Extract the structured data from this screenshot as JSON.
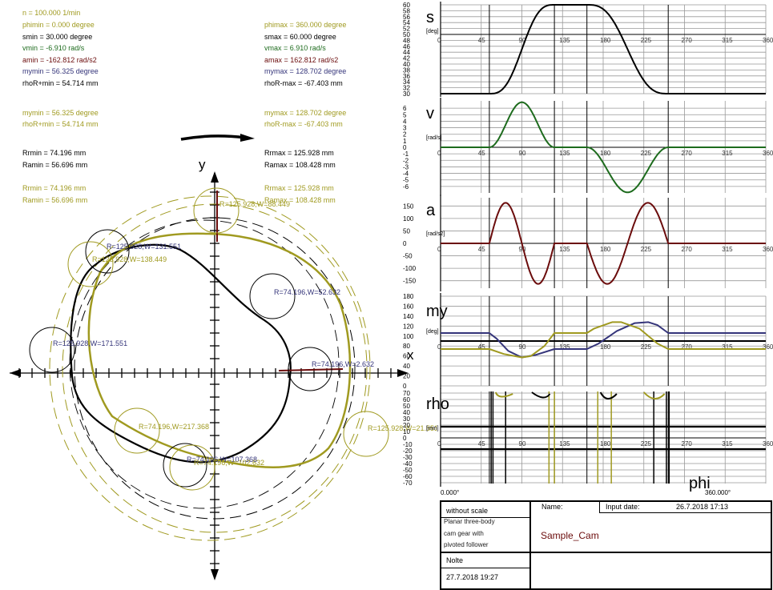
{
  "params_left": [
    {
      "text": "n = 100.000 1/min",
      "color": "olive"
    },
    {
      "text": "phimin = 0.000 degree",
      "color": "olive"
    },
    {
      "text": "smin = 30.000 degree",
      "color": "black"
    },
    {
      "text": "vmin = -6.910 rad/s",
      "color": "green"
    },
    {
      "text": "amin = -162.812 rad/s2",
      "color": "maroon"
    },
    {
      "text": "mymin = 56.325 degree",
      "color": "navy"
    },
    {
      "text": "rhoR+min = 54.714 mm",
      "color": "black"
    }
  ],
  "params_right": [
    {
      "text": "phimax = 360.000 degree",
      "color": "olive"
    },
    {
      "text": "smax = 60.000 degree",
      "color": "black"
    },
    {
      "text": "vmax = 6.910 rad/s",
      "color": "green"
    },
    {
      "text": "amax = 162.812 rad/s2",
      "color": "maroon"
    },
    {
      "text": "mymax = 128.702 degree",
      "color": "navy"
    },
    {
      "text": "rhoR-max = -67.403 mm",
      "color": "black"
    }
  ],
  "params_left2": [
    {
      "text": "mymin = 56.325 degree",
      "color": "olive"
    },
    {
      "text": "rhoR+min = 54.714 mm",
      "color": "olive"
    }
  ],
  "params_right2": [
    {
      "text": "mymax = 128.702 degree",
      "color": "olive"
    },
    {
      "text": "rhoR-max = -67.403 mm",
      "color": "olive"
    }
  ],
  "radii_left_black": [
    "Rrmin = 74.196 mm",
    "Ramin = 56.696 mm"
  ],
  "radii_right_black": [
    "Rrmax = 125.928 mm",
    "Ramax = 108.428 mm"
  ],
  "radii_left_olive": [
    "Rrmin = 74.196 mm",
    "Ramin = 56.696 mm"
  ],
  "radii_right_olive": [
    "Rrmax = 125.928 mm",
    "Ramax = 108.428 mm"
  ],
  "cam_drawing": {
    "axis_x_label": "x",
    "axis_y_label": "y",
    "rotation_arrow": "clockwise",
    "annotations": [
      {
        "text": "R=125.928,W=88.449",
        "color": "olive"
      },
      {
        "text": "R=125.928,W=131.551",
        "color": "navy"
      },
      {
        "text": "R=125.928,W=138.449",
        "color": "olive"
      },
      {
        "text": "R=74.196,W=52.632",
        "color": "navy"
      },
      {
        "text": "R=125.928,W=171.551",
        "color": "navy"
      },
      {
        "text": "R=74.196,W=2.632",
        "color": "navy"
      },
      {
        "text": "R=74.196,W=217.368",
        "color": "olive"
      },
      {
        "text": "R=74.196,W=107.368",
        "color": "navy"
      },
      {
        "text": "R=74.196,W=102.632",
        "color": "olive"
      },
      {
        "text": "R=125.928,W=21.551",
        "color": "olive"
      }
    ]
  },
  "chart_data": [
    {
      "type": "line",
      "title": "s",
      "ylabel": "[deg]",
      "x": [
        0,
        45,
        54,
        90,
        126,
        144,
        180,
        198,
        234,
        252,
        270,
        315,
        360
      ],
      "series": [
        {
          "name": "s",
          "color": "#000000",
          "values": [
            30,
            30,
            30,
            45,
            60,
            60,
            60,
            60,
            45,
            30,
            30,
            30,
            30
          ]
        }
      ],
      "xticks": [
        0,
        45,
        90,
        135,
        180,
        225,
        270,
        315,
        360
      ],
      "yticks": [
        30,
        32,
        34,
        36,
        38,
        40,
        42,
        44,
        46,
        48,
        50,
        52,
        54,
        56,
        58,
        60
      ],
      "ylim": [
        30,
        60
      ],
      "xlim": [
        0,
        360
      ],
      "grid": true
    },
    {
      "type": "line",
      "title": "v",
      "ylabel": "[rad/s]",
      "x": [
        0,
        54,
        90,
        126,
        144,
        162,
        198,
        234,
        252,
        360
      ],
      "series": [
        {
          "name": "v",
          "color": "#1d6b1d",
          "values": [
            0,
            0,
            6.91,
            0,
            0,
            0,
            -6.91,
            0,
            0,
            0
          ]
        }
      ],
      "xticks": [
        0,
        45,
        90,
        135,
        180,
        225,
        270,
        315,
        360
      ],
      "yticks": [
        -6,
        -5,
        -4,
        -3,
        -2,
        -1,
        0,
        1,
        2,
        3,
        4,
        5,
        6
      ],
      "ylim": [
        -7,
        7
      ],
      "xlim": [
        0,
        360
      ],
      "grid": true
    },
    {
      "type": "line",
      "title": "a",
      "ylabel": "[rad/s2]",
      "x": [
        0,
        54,
        58,
        90,
        120,
        126,
        162,
        168,
        198,
        232,
        252,
        360
      ],
      "series": [
        {
          "name": "a",
          "color": "#6b0c0c",
          "values": [
            0,
            0,
            162.8,
            0,
            -162.8,
            0,
            0,
            -162.8,
            0,
            162.8,
            0,
            0
          ]
        }
      ],
      "xticks": [
        0,
        45,
        90,
        135,
        180,
        225,
        270,
        315,
        360
      ],
      "yticks": [
        -150,
        -100,
        -50,
        0,
        50,
        100,
        150
      ],
      "ylim": [
        -180,
        180
      ],
      "xlim": [
        0,
        360
      ],
      "grid": true
    },
    {
      "type": "line",
      "title": "my",
      "ylabel": "[deg]",
      "x": [
        0,
        50,
        90,
        126,
        162,
        198,
        230,
        252,
        360
      ],
      "series": [
        {
          "name": "my_1",
          "color": "#35357a",
          "values": [
            106,
            106,
            56.3,
            74,
            74,
            110,
            128.7,
            106,
            106
          ]
        },
        {
          "name": "my_2",
          "color": "#a09a20",
          "values": [
            74,
            74,
            56.3,
            106,
            106,
            128.7,
            106,
            74,
            74
          ]
        }
      ],
      "reference_line": 90,
      "xticks": [
        0,
        45,
        90,
        135,
        180,
        225,
        270,
        315,
        360
      ],
      "yticks": [
        0,
        20,
        40,
        60,
        80,
        100,
        120,
        140,
        160,
        180
      ],
      "ylim": [
        0,
        180
      ],
      "xlim": [
        0,
        360
      ],
      "grid": true
    },
    {
      "type": "line",
      "title": "rho",
      "ylabel": "[mm]",
      "xlabel": "phi",
      "x_range_labels": [
        "0.000°",
        "360.000°"
      ],
      "series": [
        {
          "name": "rho_1",
          "color": "#000000"
        },
        {
          "name": "rho_2",
          "color": "#a09a20"
        }
      ],
      "reference_lines": [
        17.5,
        -17.5
      ],
      "xticks": [
        0,
        45,
        90,
        135,
        180,
        225,
        270,
        315,
        360
      ],
      "yticks": [
        -70,
        -60,
        -50,
        -40,
        -30,
        -20,
        -10,
        0,
        10,
        20,
        30,
        40,
        50,
        60,
        70
      ],
      "ylim": [
        -70,
        70
      ],
      "xlim": [
        0,
        360
      ],
      "grid": true
    }
  ],
  "title_block": {
    "scale": "without scale",
    "name_label": "Name:",
    "input_date_label": "Input date:",
    "input_date": "26.7.2018 17:13",
    "description_lines": [
      "Planar three-body",
      "cam gear with",
      "pivoted follower"
    ],
    "name_value": "Sample_Cam",
    "author": "Nolte",
    "date": "27.7.2018 19:27"
  }
}
